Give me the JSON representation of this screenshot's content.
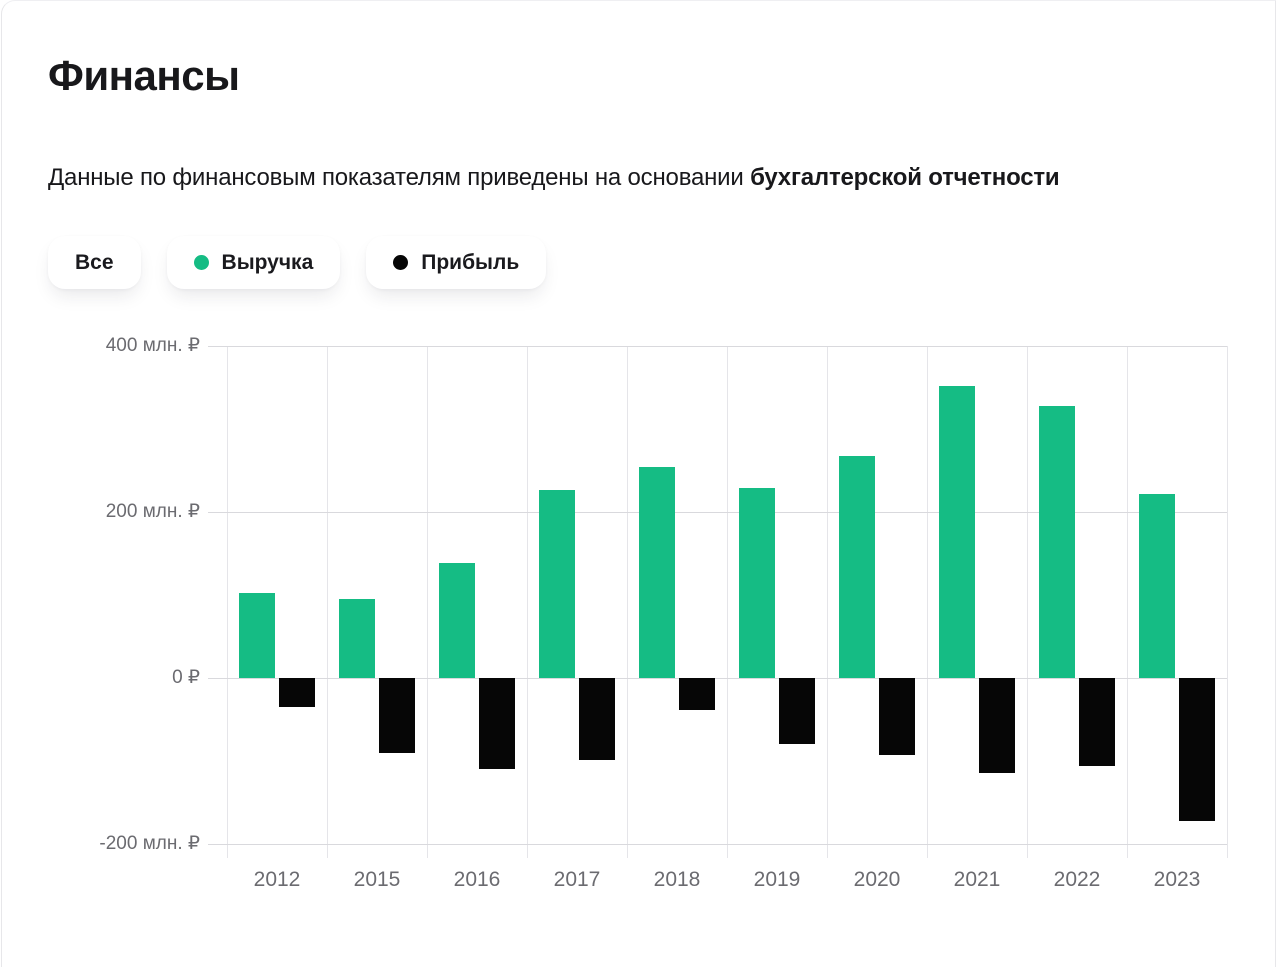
{
  "header": {
    "title": "Финансы",
    "subtitle_regular": "Данные по финансовым показателям приведены на основании ",
    "subtitle_bold": "бухгалтерской отчетности"
  },
  "filters": [
    {
      "id": "all",
      "label": "Все",
      "dot_color": null
    },
    {
      "id": "revenue",
      "label": "Выручка",
      "dot_color": "#15bc84"
    },
    {
      "id": "profit",
      "label": "Прибыль",
      "dot_color": "#060606"
    }
  ],
  "chart_data": {
    "type": "bar",
    "title": "",
    "xlabel": "",
    "ylabel": "млн. ₽",
    "categories": [
      "2012",
      "2015",
      "2016",
      "2017",
      "2018",
      "2019",
      "2020",
      "2021",
      "2022",
      "2023"
    ],
    "series": [
      {
        "name": "Выручка",
        "color": "#15bc84",
        "values": [
          102,
          95,
          138,
          227,
          254,
          229,
          267,
          352,
          328,
          222
        ]
      },
      {
        "name": "Прибыль",
        "color": "#060606",
        "values": [
          -35,
          -90,
          -110,
          -99,
          -38,
          -80,
          -93,
          -114,
          -106,
          -172
        ]
      }
    ],
    "ylim": [
      -200,
      400
    ],
    "yticks": [
      {
        "value": 400,
        "label": "400 млн. ₽"
      },
      {
        "value": 200,
        "label": "200 млн. ₽"
      },
      {
        "value": 0,
        "label": "0 ₽"
      },
      {
        "value": -200,
        "label": "-200 млн. ₽"
      }
    ],
    "grid": true,
    "legend_position": "top-left-buttons"
  }
}
